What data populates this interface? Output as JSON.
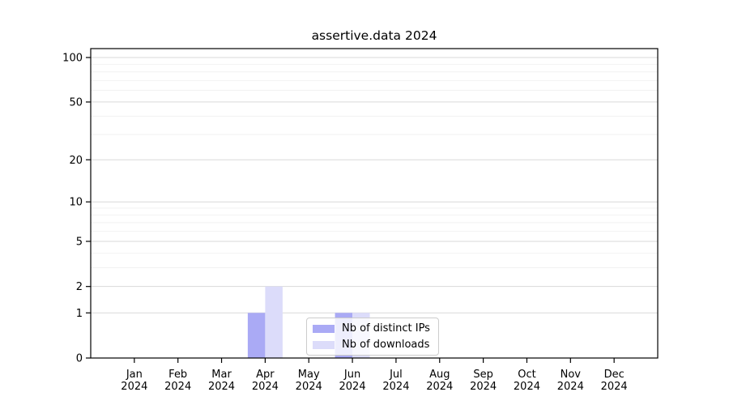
{
  "chart_data": {
    "type": "bar",
    "title": "assertive.data 2024",
    "categories": [
      "Jan",
      "Feb",
      "Mar",
      "Apr",
      "May",
      "Jun",
      "Jul",
      "Aug",
      "Sep",
      "Oct",
      "Nov",
      "Dec"
    ],
    "year_label": "2024",
    "series": [
      {
        "name": "Nb of distinct IPs",
        "color": "#aaaaf5",
        "values": [
          0,
          0,
          0,
          1,
          0,
          1,
          0,
          0,
          0,
          0,
          0,
          0
        ]
      },
      {
        "name": "Nb of downloads",
        "color": "#dcdcfa",
        "values": [
          0,
          0,
          0,
          2,
          0,
          1,
          0,
          0,
          0,
          0,
          0,
          0
        ]
      }
    ],
    "xlabel": "",
    "ylabel": "",
    "yscale": "log1p",
    "ylim": [
      0,
      100
    ],
    "y_major_ticks": [
      0,
      1,
      2,
      5,
      10,
      20,
      50,
      100
    ],
    "y_minor_gridlines": [
      3,
      4,
      6,
      7,
      8,
      9,
      30,
      40,
      60,
      70,
      80,
      90
    ],
    "grid": true,
    "legend_position": "inside-bottom-center",
    "colors": {
      "axis": "#000000",
      "text": "#000000",
      "major_grid": "#d9d9d9",
      "minor_grid": "#f2f2f2",
      "background": "#ffffff",
      "legend_border": "#cccccc"
    }
  }
}
